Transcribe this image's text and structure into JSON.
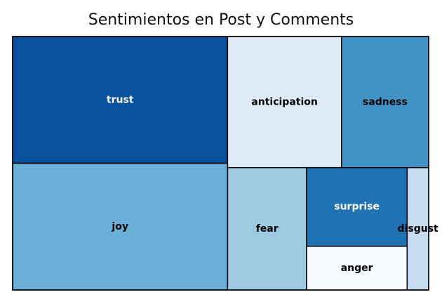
{
  "chart_data": {
    "type": "treemap",
    "title": "Sentimientos en Post y Comments",
    "categories": [
      "trust",
      "joy",
      "anticipation",
      "sadness",
      "fear",
      "surprise",
      "anger",
      "disgust"
    ],
    "values": [
      31,
      31,
      17,
      13,
      11,
      9,
      5,
      3
    ],
    "colors": {
      "trust": "#08519c",
      "joy": "#6baed6",
      "anticipation": "#deebf7",
      "sadness": "#4292c6",
      "fear": "#9ecae1",
      "surprise": "#2171b5",
      "anger": "#f7fbff",
      "disgust": "#c6dbef"
    },
    "label_colors": {
      "trust": "#ffffff",
      "joy": "#000000",
      "anticipation": "#000000",
      "sadness": "#000000",
      "fear": "#000000",
      "surprise": "#ffffff",
      "anger": "#000000",
      "disgust": "#000000"
    },
    "border_color": "#000000"
  }
}
